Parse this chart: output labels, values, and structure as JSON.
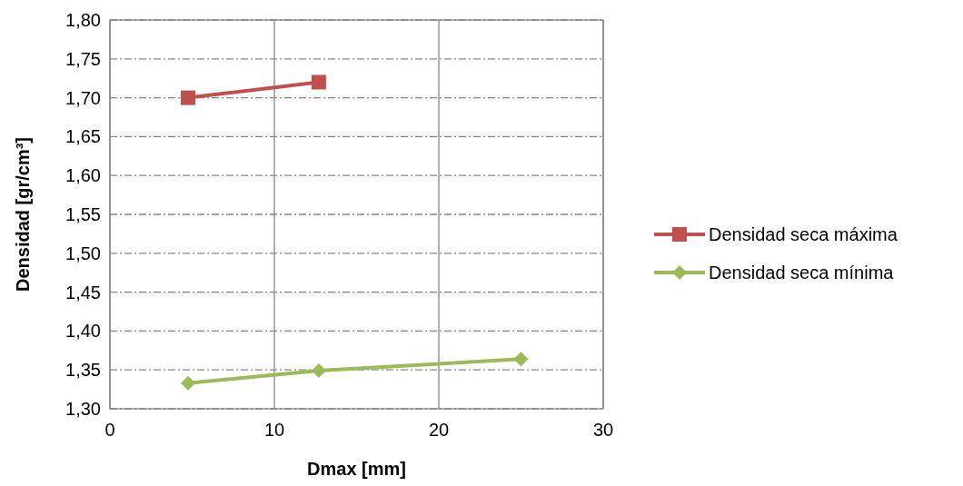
{
  "chart_data": {
    "type": "line",
    "xlabel": "Dmax [mm]",
    "ylabel": "Densidad [gr/cm³]",
    "xlim": [
      0,
      30
    ],
    "xticks": [
      0,
      10,
      20,
      30
    ],
    "ylim": [
      1.3,
      1.8
    ],
    "yticks": [
      {
        "value": 1.3,
        "label": "1,30"
      },
      {
        "value": 1.35,
        "label": "1,35"
      },
      {
        "value": 1.4,
        "label": "1,40"
      },
      {
        "value": 1.45,
        "label": "1,45"
      },
      {
        "value": 1.5,
        "label": "1,50"
      },
      {
        "value": 1.55,
        "label": "1,55"
      },
      {
        "value": 1.6,
        "label": "1,60"
      },
      {
        "value": 1.65,
        "label": "1,65"
      },
      {
        "value": 1.7,
        "label": "1,70"
      },
      {
        "value": 1.75,
        "label": "1,75"
      },
      {
        "value": 1.8,
        "label": "1,80"
      }
    ],
    "grid": true,
    "legend": "right",
    "line_style": "solid",
    "series": [
      {
        "name": "Densidad seca máxima",
        "color": "#c0504d",
        "marker": "square",
        "x": [
          4.75,
          12.7
        ],
        "values": [
          1.7,
          1.72
        ]
      },
      {
        "name": "Densidad seca mínima",
        "color": "#9bbb59",
        "marker": "diamond",
        "x": [
          4.75,
          12.7,
          25
        ],
        "values": [
          1.333,
          1.349,
          1.364
        ]
      }
    ]
  }
}
